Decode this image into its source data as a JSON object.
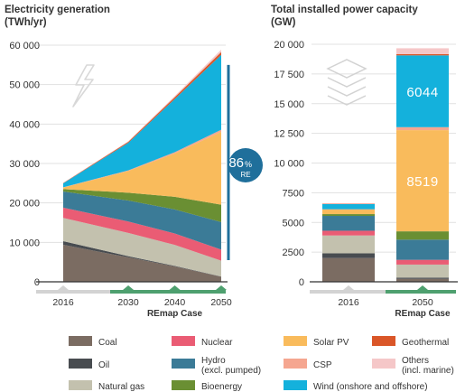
{
  "colors": {
    "coal": "#7b6c62",
    "oil": "#484c50",
    "gas": "#c3c1ae",
    "nuclear": "#ea5c74",
    "hydro": "#3b7b97",
    "bio": "#6a8f33",
    "solar": "#f9bb5c",
    "csp": "#f5a690",
    "wind": "#14b1dc",
    "geo": "#da5628",
    "others": "#f5c7c8",
    "axis": "#333333",
    "grid": "#e1e1e1",
    "band": "#d3d3d3",
    "band_green": "#4ea06f",
    "re_blue": "#1f6f9b"
  },
  "left": {
    "title_line1": "Electricity generation",
    "title_line2": "(TWh/yr)",
    "icon": "lightning-icon",
    "badge_value": "86",
    "badge_unit": "%",
    "badge_label": "RE"
  },
  "right": {
    "title_line1": "Total installed power capacity",
    "title_line2": "(GW)",
    "icon": "stacked-layers-icon"
  },
  "legend": [
    {
      "key": "coal",
      "label": "Coal"
    },
    {
      "key": "nuclear",
      "label": "Nuclear"
    },
    {
      "key": "solar",
      "label": "Solar PV"
    },
    {
      "key": "geo",
      "label": "Geothermal"
    },
    {
      "key": "oil",
      "label": "Oil"
    },
    {
      "key": "hydro",
      "label": "Hydro",
      "sub": "(excl. pumped)"
    },
    {
      "key": "csp",
      "label": "CSP"
    },
    {
      "key": "others",
      "label": "Others",
      "sub": "(incl. marine)"
    },
    {
      "key": "gas",
      "label": "Natural gas"
    },
    {
      "key": "bio",
      "label": "Bioenergy"
    },
    {
      "key": "wind",
      "label": "Wind (onshore and offshore)"
    }
  ],
  "chart_data": [
    {
      "type": "area",
      "title": "Electricity generation",
      "ylabel": "(TWh/yr)",
      "x": [
        2016,
        2030,
        2040,
        2050
      ],
      "x_tick_labels": [
        "2016",
        "2030",
        "2040",
        "2050"
      ],
      "x_sublabel": "REmap Case",
      "ylim": [
        0,
        60000
      ],
      "yticks": [
        0,
        10000,
        20000,
        30000,
        40000,
        50000,
        60000
      ],
      "ytick_labels": [
        "0",
        "10 000",
        "20 000",
        "30 000",
        "40 000",
        "50 000",
        "60 000"
      ],
      "series": [
        {
          "key": "coal",
          "name": "Coal",
          "values": [
            9400,
            6200,
            3900,
            1300
          ]
        },
        {
          "key": "oil",
          "name": "Oil",
          "values": [
            900,
            300,
            150,
            50
          ]
        },
        {
          "key": "gas",
          "name": "Natural gas",
          "values": [
            5900,
            5900,
            5300,
            4000
          ]
        },
        {
          "key": "nuclear",
          "name": "Nuclear",
          "values": [
            2600,
            2900,
            2900,
            2800
          ]
        },
        {
          "key": "hydro",
          "name": "Hydro (excl. pumped)",
          "values": [
            4100,
            5300,
            6100,
            7000
          ]
        },
        {
          "key": "bio",
          "name": "Bioenergy",
          "values": [
            600,
            2000,
            3200,
            4400
          ]
        },
        {
          "key": "solar",
          "name": "Solar PV",
          "values": [
            400,
            5500,
            11000,
            18500
          ]
        },
        {
          "key": "csp",
          "name": "CSP",
          "values": [
            50,
            150,
            300,
            500
          ]
        },
        {
          "key": "wind",
          "name": "Wind (onshore and offshore)",
          "values": [
            1000,
            7000,
            13500,
            19000
          ]
        },
        {
          "key": "geo",
          "name": "Geothermal",
          "values": [
            100,
            250,
            450,
            700
          ]
        },
        {
          "key": "others",
          "name": "Others (incl. marine)",
          "values": [
            50,
            150,
            300,
            600
          ]
        }
      ],
      "annotation": {
        "text": "86% RE",
        "range_y": [
          5500,
          55000
        ]
      }
    },
    {
      "type": "bar",
      "title": "Total installed power capacity",
      "ylabel": "(GW)",
      "categories": [
        "2016",
        "2050"
      ],
      "x_sublabel": "REmap Case",
      "ylim": [
        0,
        20000
      ],
      "yticks": [
        0,
        2500,
        5000,
        7500,
        10000,
        12500,
        15000,
        17500,
        20000
      ],
      "ytick_labels": [
        "0",
        "2500",
        "5000",
        "7500",
        "10 000",
        "12 500",
        "15 000",
        "17 500",
        "20 000"
      ],
      "series": [
        {
          "key": "coal",
          "name": "Coal",
          "values": [
            2000,
            250
          ]
        },
        {
          "key": "oil",
          "name": "Oil",
          "values": [
            400,
            100
          ]
        },
        {
          "key": "gas",
          "name": "Natural gas",
          "values": [
            1500,
            1100
          ]
        },
        {
          "key": "nuclear",
          "name": "Nuclear",
          "values": [
            400,
            400
          ]
        },
        {
          "key": "hydro",
          "name": "Hydro (excl. pumped)",
          "values": [
            1250,
            1700
          ]
        },
        {
          "key": "bio",
          "name": "Bioenergy",
          "values": [
            150,
            700
          ]
        },
        {
          "key": "solar",
          "name": "Solar PV",
          "values": [
            400,
            8519
          ]
        },
        {
          "key": "csp",
          "name": "CSP",
          "values": [
            10,
            250
          ]
        },
        {
          "key": "wind",
          "name": "Wind (onshore and offshore)",
          "values": [
            450,
            6044
          ]
        },
        {
          "key": "geo",
          "name": "Geothermal",
          "values": [
            20,
            100
          ]
        },
        {
          "key": "others",
          "name": "Others (incl. marine)",
          "values": [
            20,
            500
          ]
        }
      ],
      "bar_labels": [
        {
          "key": "solar",
          "category": "2050",
          "text": "8519"
        },
        {
          "key": "wind",
          "category": "2050",
          "text": "6044"
        }
      ]
    }
  ]
}
